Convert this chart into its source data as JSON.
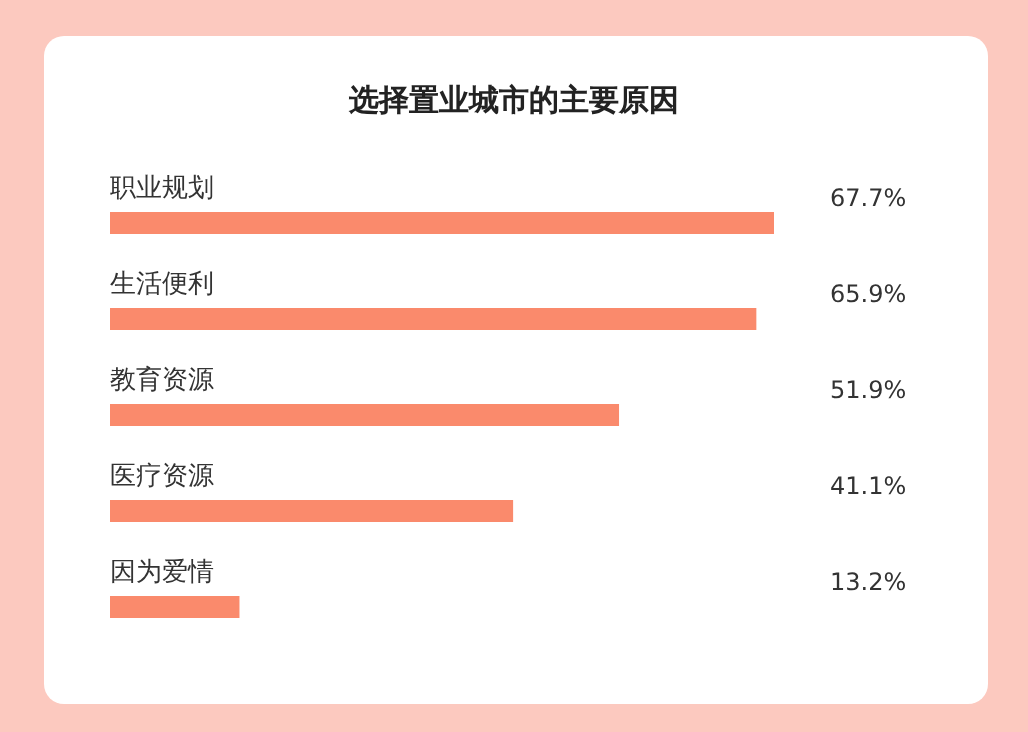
{
  "chart_data": {
    "type": "bar",
    "orientation": "horizontal",
    "title": "选择置业城市的主要原因",
    "categories": [
      "职业规划",
      "生活便利",
      "教育资源",
      "医疗资源",
      "因为爱情"
    ],
    "values": [
      67.7,
      65.9,
      51.9,
      41.1,
      13.2
    ],
    "value_labels": [
      "67.7%",
      "65.9%",
      "51.9%",
      "41.1%",
      "13.2%"
    ],
    "color": "#fa8a6c"
  }
}
